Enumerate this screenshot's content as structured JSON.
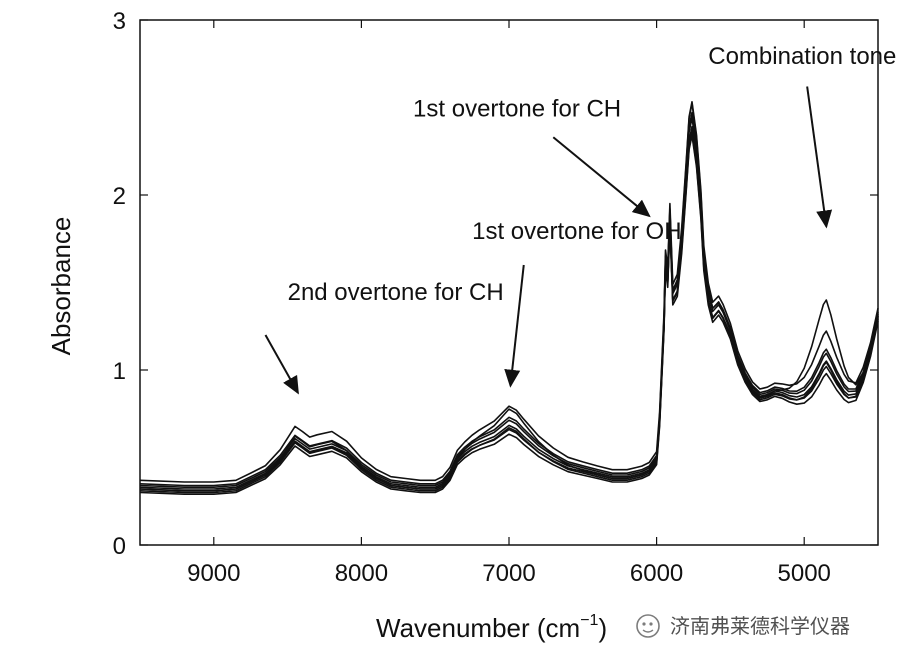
{
  "chart_data": {
    "type": "line",
    "title": "",
    "xlabel": "Wavenumber (cm",
    "xlabel_sup": "−1",
    "xlabel_suffix": ")",
    "ylabel": "Absorbance",
    "xlim": [
      9500,
      4500
    ],
    "ylim": [
      0,
      3
    ],
    "x_reversed": true,
    "grid": false,
    "xticks": [
      9000,
      8000,
      7000,
      6000,
      5000
    ],
    "yticks": [
      0,
      1,
      2,
      3
    ],
    "xtick_labels": [
      "9000",
      "8000",
      "7000",
      "6000",
      "5000"
    ],
    "ytick_labels": [
      "0",
      "1",
      "2",
      "3"
    ],
    "series_color": "#111111",
    "base_spectrum": [
      [
        9500,
        0.32
      ],
      [
        9200,
        0.31
      ],
      [
        9000,
        0.31
      ],
      [
        8850,
        0.32
      ],
      [
        8750,
        0.36
      ],
      [
        8650,
        0.4
      ],
      [
        8550,
        0.48
      ],
      [
        8450,
        0.59
      ],
      [
        8400,
        0.56
      ],
      [
        8350,
        0.53
      ],
      [
        8300,
        0.54
      ],
      [
        8200,
        0.56
      ],
      [
        8100,
        0.52
      ],
      [
        8000,
        0.44
      ],
      [
        7900,
        0.38
      ],
      [
        7800,
        0.34
      ],
      [
        7700,
        0.33
      ],
      [
        7600,
        0.32
      ],
      [
        7500,
        0.32
      ],
      [
        7450,
        0.34
      ],
      [
        7400,
        0.39
      ],
      [
        7350,
        0.48
      ],
      [
        7300,
        0.52
      ],
      [
        7250,
        0.55
      ],
      [
        7200,
        0.57
      ],
      [
        7100,
        0.6
      ],
      [
        7000,
        0.66
      ],
      [
        6950,
        0.64
      ],
      [
        6900,
        0.6
      ],
      [
        6800,
        0.53
      ],
      [
        6700,
        0.48
      ],
      [
        6600,
        0.44
      ],
      [
        6500,
        0.42
      ],
      [
        6400,
        0.4
      ],
      [
        6300,
        0.38
      ],
      [
        6200,
        0.38
      ],
      [
        6100,
        0.4
      ],
      [
        6050,
        0.42
      ],
      [
        6000,
        0.48
      ],
      [
        5980,
        0.7
      ],
      [
        5950,
        1.25
      ],
      [
        5940,
        1.6
      ],
      [
        5925,
        1.5
      ],
      [
        5910,
        1.85
      ],
      [
        5890,
        1.4
      ],
      [
        5860,
        1.45
      ],
      [
        5830,
        1.7
      ],
      [
        5800,
        2.05
      ],
      [
        5780,
        2.3
      ],
      [
        5760,
        2.38
      ],
      [
        5730,
        2.2
      ],
      [
        5700,
        1.9
      ],
      [
        5680,
        1.6
      ],
      [
        5650,
        1.4
      ],
      [
        5620,
        1.3
      ],
      [
        5580,
        1.34
      ],
      [
        5550,
        1.3
      ],
      [
        5500,
        1.2
      ],
      [
        5450,
        1.05
      ],
      [
        5400,
        0.95
      ],
      [
        5350,
        0.88
      ],
      [
        5300,
        0.84
      ],
      [
        5250,
        0.85
      ],
      [
        5200,
        0.87
      ],
      [
        5150,
        0.86
      ],
      [
        5100,
        0.84
      ],
      [
        5050,
        0.83
      ],
      [
        5000,
        0.84
      ],
      [
        4950,
        0.88
      ],
      [
        4900,
        0.95
      ],
      [
        4870,
        1.0
      ],
      [
        4850,
        1.02
      ],
      [
        4820,
        0.98
      ],
      [
        4780,
        0.92
      ],
      [
        4730,
        0.86
      ],
      [
        4700,
        0.84
      ],
      [
        4650,
        0.85
      ],
      [
        4600,
        0.95
      ],
      [
        4550,
        1.1
      ],
      [
        4500,
        1.3
      ]
    ],
    "series": [
      {
        "offset": 0.0,
        "ch2_scale": 1.0,
        "oh1_scale": 1.0,
        "ch1_scale": 1.0,
        "oh_comb_scale": 1.0
      },
      {
        "offset": 0.01,
        "ch2_scale": 0.97,
        "oh1_scale": 1.04,
        "ch1_scale": 0.98,
        "oh_comb_scale": 1.03
      },
      {
        "offset": -0.01,
        "ch2_scale": 1.02,
        "oh1_scale": 1.06,
        "ch1_scale": 1.01,
        "oh_comb_scale": 1.05
      },
      {
        "offset": 0.02,
        "ch2_scale": 0.99,
        "oh1_scale": 1.1,
        "ch1_scale": 1.02,
        "oh_comb_scale": 1.08
      },
      {
        "offset": -0.02,
        "ch2_scale": 0.98,
        "oh1_scale": 0.98,
        "ch1_scale": 0.99,
        "oh_comb_scale": 0.97
      },
      {
        "offset": 0.03,
        "ch2_scale": 1.03,
        "oh1_scale": 1.12,
        "ch1_scale": 1.03,
        "oh_comb_scale": 1.1
      },
      {
        "offset": 0.0,
        "ch2_scale": 1.15,
        "oh1_scale": 1.35,
        "ch1_scale": 1.07,
        "oh_comb_scale": 1.55
      },
      {
        "offset": 0.05,
        "ch2_scale": 1.18,
        "oh1_scale": 1.25,
        "ch1_scale": 1.05,
        "oh_comb_scale": 1.22
      }
    ],
    "annotations": [
      {
        "text": "Combination tone for OH",
        "x": 5650,
        "y": 2.75,
        "arrow_from": [
          4980,
          2.62
        ],
        "arrow_to": [
          4850,
          1.82
        ]
      },
      {
        "text": "1st overtone for CH",
        "x": 7650,
        "y": 2.45,
        "arrow_from": [
          6700,
          2.33
        ],
        "arrow_to": [
          6050,
          1.88
        ]
      },
      {
        "text": "1st overtone for OH",
        "x": 7250,
        "y": 1.75,
        "arrow_from": [
          6900,
          1.6
        ],
        "arrow_to": [
          6990,
          0.91
        ]
      },
      {
        "text": "2nd overtone for CH",
        "x": 8500,
        "y": 1.4,
        "arrow_from": [
          8650,
          1.2
        ],
        "arrow_to": [
          8430,
          0.87
        ]
      }
    ]
  },
  "watermark": {
    "text": "济南弗莱德科学仪器",
    "icon": "wechat-icon"
  }
}
